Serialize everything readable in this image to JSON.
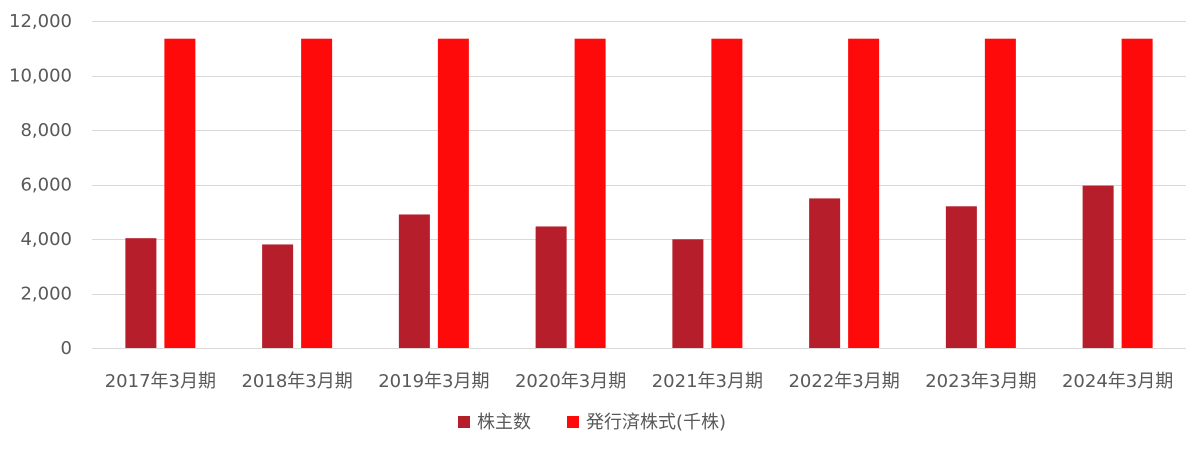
{
  "chart_data": {
    "type": "bar",
    "categories": [
      "2017年3月期",
      "2018年3月期",
      "2019年3月期",
      "2020年3月期",
      "2021年3月期",
      "2022年3月期",
      "2023年3月期",
      "2024年3月期"
    ],
    "series": [
      {
        "name": "株主数",
        "color": "#b51e2a",
        "values": [
          4030,
          3800,
          4900,
          4460,
          3990,
          5490,
          5200,
          5960
        ]
      },
      {
        "name": "発行済株式(千株)",
        "color": "#ff0a0a",
        "values": [
          11350,
          11350,
          11350,
          11350,
          11350,
          11350,
          11350,
          11350
        ]
      }
    ],
    "ylim": [
      0,
      12000
    ],
    "yticks": [
      0,
      2000,
      4000,
      6000,
      8000,
      10000,
      12000
    ],
    "ytick_labels": [
      "0",
      "2,000",
      "4,000",
      "6,000",
      "8,000",
      "10,000",
      "12,000"
    ],
    "grid": true,
    "legend_position": "bottom"
  }
}
